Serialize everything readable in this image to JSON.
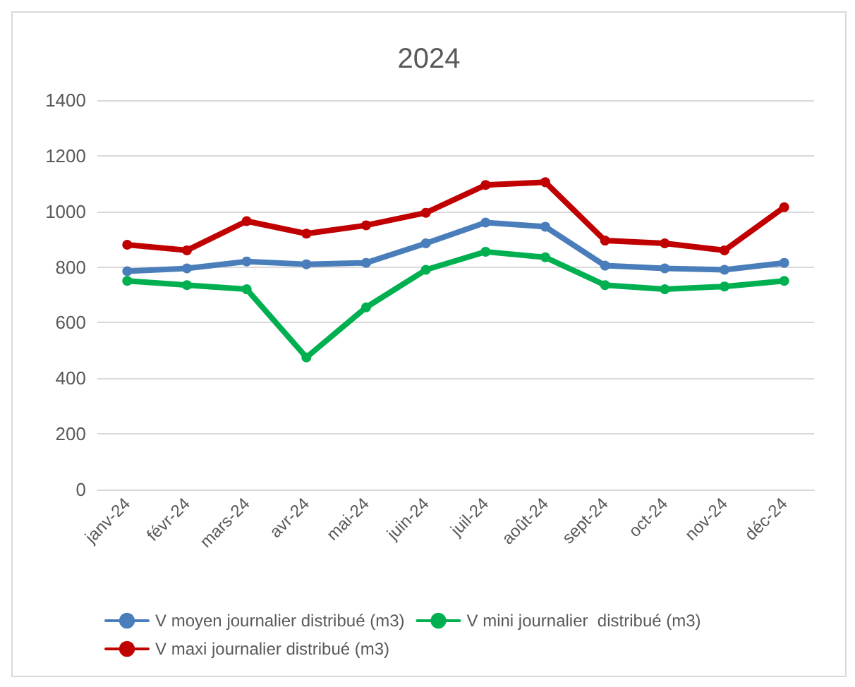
{
  "chart_data": {
    "type": "line",
    "title": "2024",
    "categories": [
      "janv-24",
      "févr-24",
      "mars-24",
      "avr-24",
      "mai-24",
      "juin-24",
      "juil-24",
      "août-24",
      "sept-24",
      "oct-24",
      "nov-24",
      "déc-24"
    ],
    "series": [
      {
        "name": "V moyen journalier distribué (m3)",
        "color": "#4a7ebb",
        "values": [
          785,
          795,
          820,
          810,
          815,
          885,
          960,
          945,
          805,
          795,
          790,
          815
        ]
      },
      {
        "name": "V mini journalier  distribué (m3)",
        "color": "#00b050",
        "values": [
          750,
          735,
          720,
          475,
          655,
          790,
          855,
          835,
          735,
          720,
          730,
          750
        ]
      },
      {
        "name": "V maxi journalier distribué (m3)",
        "color": "#c00000",
        "values": [
          880,
          860,
          965,
          920,
          950,
          995,
          1095,
          1105,
          895,
          885,
          860,
          1015
        ]
      }
    ],
    "ylim": [
      0,
      1400
    ],
    "yticks": [
      0,
      200,
      400,
      600,
      800,
      1000,
      1200,
      1400
    ],
    "grid": "y",
    "legend": "bottom",
    "marker": "circle",
    "line_style": "solid"
  }
}
